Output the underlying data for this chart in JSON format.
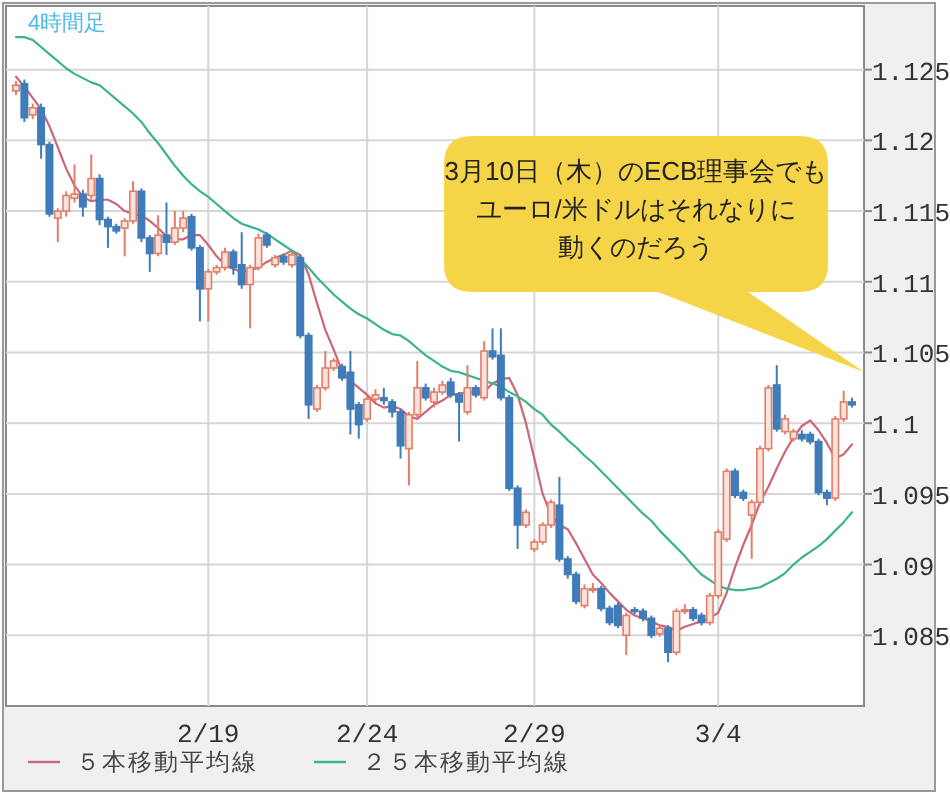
{
  "chart_data": {
    "type": "candlestick",
    "categories": [
      null,
      null,
      null,
      null,
      null,
      null,
      null,
      null,
      null,
      null,
      null,
      null,
      null,
      null,
      null,
      null,
      null,
      null,
      null,
      null,
      null,
      null,
      null,
      "2/19",
      null,
      null,
      null,
      null,
      null,
      null,
      null,
      null,
      null,
      null,
      null,
      null,
      null,
      null,
      null,
      null,
      null,
      null,
      "2/24",
      null,
      null,
      null,
      null,
      null,
      null,
      null,
      null,
      null,
      null,
      null,
      null,
      null,
      null,
      null,
      null,
      null,
      null,
      null,
      "2/29",
      null,
      null,
      null,
      null,
      null,
      null,
      null,
      null,
      null,
      null,
      null,
      null,
      null,
      null,
      null,
      null,
      null,
      null,
      null,
      null,
      null,
      "3/4",
      null,
      null,
      null,
      null,
      null,
      null,
      null,
      null,
      null,
      null,
      null,
      null,
      null,
      null,
      null,
      null
    ],
    "series": [
      {
        "type": "line",
        "name": "５本移動平均線",
        "color": "#cc6677",
        "values": [
          1.1245,
          1.1238,
          1.123,
          1.1222,
          1.121,
          1.1195,
          1.118,
          1.1168,
          1.116,
          1.1157,
          1.1158,
          1.1158,
          1.1155,
          1.115,
          1.1148,
          1.1147,
          1.1143,
          1.1138,
          1.1132,
          1.113,
          1.113,
          1.1133,
          1.1133,
          1.1126,
          1.1118,
          1.1112,
          1.1109,
          1.1107,
          1.1108,
          1.111,
          1.1114,
          1.1117,
          1.1119,
          1.1122,
          1.1119,
          1.1105,
          1.1085,
          1.1066,
          1.1052,
          1.1037,
          1.103,
          1.1025,
          1.102,
          1.1014,
          1.1011,
          1.1012,
          1.101,
          1.1005,
          1.1003,
          1.1008,
          1.1013,
          1.1016,
          1.102,
          1.1021,
          1.1022,
          1.1022,
          1.1022,
          1.1028,
          1.1031,
          1.1032,
          1.102,
          1.1,
          1.0975,
          1.095,
          1.0935,
          1.0928,
          1.0925,
          1.0915,
          1.0904,
          1.0893,
          1.0887,
          1.088,
          1.0874,
          1.0868,
          1.0864,
          1.0862,
          1.086,
          1.0857,
          1.0856,
          1.0853,
          1.0856,
          1.0858,
          1.086,
          1.0862,
          1.0866,
          1.088,
          1.0898,
          1.0914,
          1.0928,
          1.0944,
          1.0955,
          1.0968,
          1.098,
          1.099,
          1.0998,
          1.1002,
          1.0995,
          1.0986,
          1.0975,
          1.0978,
          1.0985
        ]
      },
      {
        "type": "line",
        "name": "２５本移動平均線",
        "color": "#3cb38a",
        "values": [
          1.1273,
          1.1273,
          1.1271,
          1.1266,
          1.1261,
          1.1256,
          1.1251,
          1.1247,
          1.1244,
          1.1241,
          1.1239,
          1.1234,
          1.1229,
          1.1224,
          1.1219,
          1.1213,
          1.1205,
          1.1198,
          1.119,
          1.1182,
          1.1175,
          1.1169,
          1.1164,
          1.116,
          1.1155,
          1.115,
          1.1145,
          1.1141,
          1.1139,
          1.1137,
          1.1134,
          1.113,
          1.1126,
          1.1122,
          1.1116,
          1.111,
          1.1103,
          1.1097,
          1.1091,
          1.1086,
          1.1081,
          1.1077,
          1.1074,
          1.107,
          1.1066,
          1.1063,
          1.1062,
          1.1058,
          1.1053,
          1.1048,
          1.1044,
          1.104,
          1.1037,
          1.1036,
          1.1034,
          1.1032,
          1.103,
          1.1028,
          1.1026,
          1.1022,
          1.1019,
          1.1015,
          1.101,
          1.1006,
          1.0999,
          1.0994,
          1.0988,
          1.0983,
          1.0977,
          1.0972,
          1.0966,
          1.096,
          1.0954,
          1.0948,
          1.0942,
          1.0936,
          1.0931,
          1.0924,
          1.0918,
          1.0912,
          1.0906,
          1.0899,
          1.0893,
          1.0889,
          1.0885,
          1.0883,
          1.0882,
          1.0882,
          1.0883,
          1.0884,
          1.0887,
          1.089,
          1.0894,
          1.09,
          1.0905,
          1.0909,
          1.0913,
          1.0918,
          1.0924,
          1.093,
          1.0937
        ]
      },
      {
        "colors": [
          "#e07f6a",
          "#3f7cb9",
          "#e07f6a",
          "#3f7cb9",
          "#3f7cb9",
          "#e07f6a",
          "#e07f6a",
          "#e07f6a",
          "#3f7cb9",
          "#e07f6a",
          "#3f7cb9",
          "#3f7cb9",
          "#3f7cb9",
          "#e07f6a",
          "#e07f6a",
          "#3f7cb9",
          "#3f7cb9",
          "#e07f6a",
          "#3f7cb9",
          "#e07f6a",
          "#e07f6a",
          "#3f7cb9",
          "#3f7cb9",
          "#e07f6a",
          "#e07f6a",
          "#e07f6a",
          "#3f7cb9",
          "#3f7cb9",
          "#e07f6a",
          "#e07f6a",
          "#3f7cb9",
          "#e07f6a",
          "#3f7cb9",
          "#e07f6a",
          "#3f7cb9",
          "#3f7cb9",
          "#e07f6a",
          "#e07f6a",
          "#e07f6a",
          "#3f7cb9",
          "#3f7cb9",
          "#3f7cb9",
          "#e07f6a",
          "#e07f6a",
          "#3f7cb9",
          "#3f7cb9",
          "#3f7cb9",
          "#e07f6a",
          "#e07f6a",
          "#3f7cb9",
          "#e07f6a",
          "#e07f6a",
          "#3f7cb9",
          "#3f7cb9",
          "#e07f6a",
          "#3f7cb9",
          "#e07f6a",
          "#3f7cb9",
          "#3f7cb9",
          "#3f7cb9",
          "#3f7cb9",
          "#e07f6a",
          "#e07f6a",
          "#e07f6a",
          "#e07f6a",
          "#3f7cb9",
          "#3f7cb9",
          "#3f7cb9",
          "#e07f6a",
          "#e07f6a",
          "#3f7cb9",
          "#3f7cb9",
          "#3f7cb9",
          "#e07f6a",
          "#3f7cb9",
          "#3f7cb9",
          "#3f7cb9",
          "#e07f6a",
          "#3f7cb9",
          "#e07f6a",
          "#e07f6a",
          "#3f7cb9",
          "#3f7cb9",
          "#e07f6a",
          "#e07f6a",
          "#e07f6a",
          "#3f7cb9",
          "#3f7cb9",
          "#e07f6a",
          "#e07f6a",
          "#e07f6a",
          "#3f7cb9",
          "#e07f6a",
          "#e07f6a",
          "#3f7cb9",
          "#3f7cb9",
          "#3f7cb9",
          "#3f7cb9",
          "#e07f6a",
          "#e07f6a",
          "#3f7cb9"
        ],
        "ohlc": [
          [
            1.1235,
            1.1242,
            1.1232,
            1.1239
          ],
          [
            1.124,
            1.1243,
            1.1213,
            1.1216
          ],
          [
            1.1218,
            1.1226,
            1.1215,
            1.1223
          ],
          [
            1.1223,
            1.1226,
            1.1187,
            1.1197
          ],
          [
            1.1197,
            1.1199,
            1.1146,
            1.1148
          ],
          [
            1.1145,
            1.1152,
            1.1128,
            1.115
          ],
          [
            1.115,
            1.1164,
            1.1146,
            1.1161
          ],
          [
            1.1159,
            1.1183,
            1.1156,
            1.1162
          ],
          [
            1.1162,
            1.1165,
            1.1146,
            1.1153
          ],
          [
            1.1161,
            1.119,
            1.1158,
            1.1173
          ],
          [
            1.1173,
            1.1176,
            1.114,
            1.1144
          ],
          [
            1.1144,
            1.1146,
            1.1124,
            1.1139
          ],
          [
            1.1139,
            1.1141,
            1.1134,
            1.1136
          ],
          [
            1.1138,
            1.1145,
            1.1118,
            1.1143
          ],
          [
            1.1143,
            1.1171,
            1.1141,
            1.1164
          ],
          [
            1.1164,
            1.1166,
            1.1128,
            1.1131
          ],
          [
            1.1131,
            1.1133,
            1.1107,
            1.112
          ],
          [
            1.112,
            1.1147,
            1.1118,
            1.1133
          ],
          [
            1.1133,
            1.1156,
            1.1119,
            1.1128
          ],
          [
            1.1128,
            1.115,
            1.1126,
            1.1138
          ],
          [
            1.1138,
            1.115,
            1.1135,
            1.1145
          ],
          [
            1.1146,
            1.1148,
            1.1122,
            1.1124
          ],
          [
            1.1124,
            1.1126,
            1.1072,
            1.1095
          ],
          [
            1.1095,
            1.1109,
            1.1072,
            1.1107
          ],
          [
            1.1107,
            1.1112,
            1.1105,
            1.111
          ],
          [
            1.111,
            1.1124,
            1.1108,
            1.1121
          ],
          [
            1.1121,
            1.1123,
            1.1105,
            1.111
          ],
          [
            1.1112,
            1.1135,
            1.1095,
            1.1098
          ],
          [
            1.1098,
            1.1112,
            1.1067,
            1.111
          ],
          [
            1.111,
            1.1134,
            1.1108,
            1.1131
          ],
          [
            1.1133,
            1.1135,
            1.1124,
            1.1126
          ],
          [
            1.1112,
            1.1119,
            1.111,
            1.1117
          ],
          [
            1.1118,
            1.112,
            1.1112,
            1.1114
          ],
          [
            1.1112,
            1.1121,
            1.111,
            1.1119
          ],
          [
            1.1117,
            1.1119,
            1.106,
            1.1062
          ],
          [
            1.1062,
            1.1064,
            1.1003,
            1.1013
          ],
          [
            1.101,
            1.1027,
            1.1008,
            1.1025
          ],
          [
            1.1025,
            1.1051,
            1.1023,
            1.1039
          ],
          [
            1.1039,
            1.1046,
            1.1037,
            1.1044
          ],
          [
            1.104,
            1.1042,
            1.103,
            1.1032
          ],
          [
            1.1036,
            1.1051,
            1.0992,
            1.101
          ],
          [
            1.1013,
            1.1015,
            1.0989,
            1.0999
          ],
          [
            1.1003,
            1.1019,
            1.1001,
            1.1017
          ],
          [
            1.1017,
            1.1024,
            1.1015,
            1.102
          ],
          [
            1.1018,
            1.1025,
            1.1013,
            1.1016
          ],
          [
            1.1015,
            1.1017,
            1.1004,
            1.1008
          ],
          [
            1.1008,
            1.101,
            1.0975,
            1.0984
          ],
          [
            1.0982,
            1.1008,
            1.0956,
            1.1006
          ],
          [
            1.1006,
            1.1044,
            1.1004,
            1.1025
          ],
          [
            1.1025,
            1.1028,
            1.1016,
            1.1018
          ],
          [
            1.1015,
            1.1025,
            1.1011,
            1.1022
          ],
          [
            1.1022,
            1.103,
            1.102,
            1.1027
          ],
          [
            1.1029,
            1.1032,
            1.1018,
            1.102
          ],
          [
            1.102,
            1.1022,
            1.0987,
            1.1015
          ],
          [
            1.1008,
            1.1041,
            1.1006,
            1.1025
          ],
          [
            1.1025,
            1.1027,
            1.1018,
            1.102
          ],
          [
            1.1018,
            1.1058,
            1.1016,
            1.1051
          ],
          [
            1.1051,
            1.1067,
            1.1045,
            1.1047
          ],
          [
            1.1048,
            1.1067,
            1.1016,
            1.1018
          ],
          [
            1.1018,
            1.102,
            1.0952,
            1.0954
          ],
          [
            1.0954,
            1.0956,
            1.0911,
            1.0928
          ],
          [
            1.0928,
            1.0939,
            1.0926,
            1.0937
          ],
          [
            1.0911,
            1.0918,
            1.0909,
            1.0916
          ],
          [
            1.0916,
            1.093,
            1.0914,
            1.0928
          ],
          [
            1.0928,
            1.0946,
            1.0926,
            1.0944
          ],
          [
            1.0942,
            1.0962,
            1.0902,
            1.0904
          ],
          [
            1.0904,
            1.0906,
            1.089,
            1.0893
          ],
          [
            1.0893,
            1.0895,
            1.0872,
            1.0874
          ],
          [
            1.0871,
            1.0886,
            1.0869,
            1.0883
          ],
          [
            1.0882,
            1.0887,
            1.088,
            1.0883
          ],
          [
            1.0883,
            1.0885,
            1.0867,
            1.0869
          ],
          [
            1.0869,
            1.0871,
            1.0857,
            1.0859
          ],
          [
            1.0871,
            1.0873,
            1.0855,
            1.0857
          ],
          [
            1.085,
            1.0866,
            1.0836,
            1.0864
          ],
          [
            1.0868,
            1.087,
            1.0865,
            1.0867
          ],
          [
            1.0867,
            1.0869,
            1.086,
            1.0862
          ],
          [
            1.0862,
            1.0864,
            1.0848,
            1.085
          ],
          [
            1.0851,
            1.0857,
            1.0849,
            1.0855
          ],
          [
            1.0855,
            1.0857,
            1.0831,
            1.0838
          ],
          [
            1.0838,
            1.0869,
            1.0836,
            1.0867
          ],
          [
            1.0867,
            1.0872,
            1.0865,
            1.0868
          ],
          [
            1.0868,
            1.087,
            1.086,
            1.0862
          ],
          [
            1.0864,
            1.0866,
            1.0857,
            1.0859
          ],
          [
            1.0859,
            1.088,
            1.0857,
            1.0878
          ],
          [
            1.0878,
            1.0925,
            1.0876,
            1.0923
          ],
          [
            1.0918,
            1.0968,
            1.0916,
            1.0966
          ],
          [
            1.0966,
            1.0968,
            1.0947,
            1.0949
          ],
          [
            1.0951,
            1.0953,
            1.0945,
            1.0947
          ],
          [
            1.0935,
            1.0946,
            1.0904,
            1.0944
          ],
          [
            1.0944,
            1.0984,
            1.0942,
            1.0982
          ],
          [
            1.0982,
            1.1027,
            1.098,
            1.1025
          ],
          [
            1.1027,
            1.1041,
            1.0994,
            1.0996
          ],
          [
            1.0994,
            1.1006,
            1.0992,
            1.1003
          ],
          [
            1.0989,
            1.0996,
            1.0987,
            1.0994
          ],
          [
            1.0992,
            1.0995,
            1.0987,
            1.0989
          ],
          [
            1.0992,
            1.0994,
            1.0985,
            1.0987
          ],
          [
            1.0987,
            1.0989,
            1.0949,
            1.0951
          ],
          [
            1.0951,
            1.0953,
            1.0942,
            1.0947
          ],
          [
            1.0947,
            1.1005,
            1.0945,
            1.1003
          ],
          [
            1.1003,
            1.1023,
            1.1001,
            1.1015
          ],
          [
            1.1015,
            1.1018,
            1.1011,
            1.1013
          ]
        ]
      }
    ],
    "ylim": [
      1.08,
      1.1295
    ],
    "yticks": [
      1.085,
      1.09,
      1.095,
      1.1,
      1.105,
      1.11,
      1.115,
      1.12,
      1.125
    ],
    "grid": true,
    "legend": "bottom",
    "annotations": [
      "4時間足",
      "3月10日（木）のECB理事会でも",
      "ユーロ/米ドルはそれなりに",
      "動くのだろう"
    ]
  }
}
